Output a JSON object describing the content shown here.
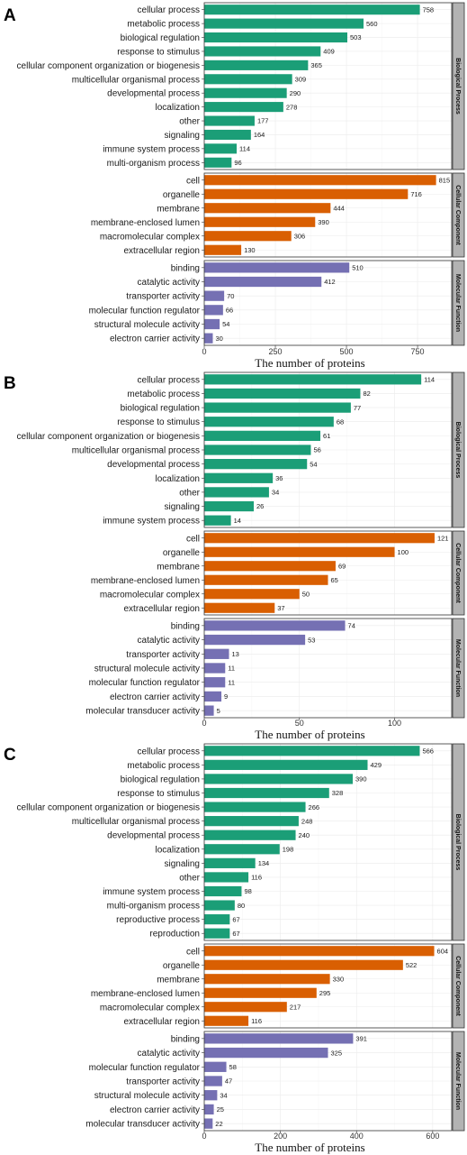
{
  "colors": {
    "biological": "#1b9e77",
    "cellular": "#d95f02",
    "molecular": "#7570b3",
    "strip_fill": "#b3b3b3",
    "grid": "#ebebeb"
  },
  "chart_data": [
    {
      "type": "bar",
      "panel_label": "A",
      "xlabel": "The number of proteins",
      "xlim": [
        0,
        870
      ],
      "xticks": [
        0,
        250,
        500,
        750
      ],
      "facets": [
        {
          "name": "Biological Process",
          "categories": [
            "cellular process",
            "metabolic process",
            "biological regulation",
            "response to stimulus",
            "cellular component organization or biogenesis",
            "multicellular organismal process",
            "developmental process",
            "localization",
            "other",
            "signaling",
            "immune system process",
            "multi-organism process"
          ],
          "values": [
            758,
            560,
            503,
            409,
            365,
            309,
            290,
            278,
            177,
            164,
            114,
            96
          ]
        },
        {
          "name": "Cellular Component",
          "categories": [
            "cell",
            "organelle",
            "membrane",
            "membrane-enclosed lumen",
            "macromolecular complex",
            "extracellular region"
          ],
          "values": [
            815,
            716,
            444,
            390,
            306,
            130
          ]
        },
        {
          "name": "Molecular Function",
          "categories": [
            "binding",
            "catalytic activity",
            "transporter activity",
            "molecular function regulator",
            "structural molecule activity",
            "electron carrier activity"
          ],
          "values": [
            510,
            412,
            70,
            66,
            54,
            30
          ]
        }
      ]
    },
    {
      "type": "bar",
      "panel_label": "B",
      "xlabel": "The number of proteins",
      "xlim": [
        0,
        130
      ],
      "xticks": [
        0,
        50,
        100
      ],
      "facets": [
        {
          "name": "Biological Process",
          "categories": [
            "cellular process",
            "metabolic process",
            "biological regulation",
            "response to stimulus",
            "cellular component organization or biogenesis",
            "multicellular organismal process",
            "developmental process",
            "localization",
            "other",
            "signaling",
            "immune system process"
          ],
          "values": [
            114,
            82,
            77,
            68,
            61,
            56,
            54,
            36,
            34,
            26,
            14
          ]
        },
        {
          "name": "Cellular Component",
          "categories": [
            "cell",
            "organelle",
            "membrane",
            "membrane-enclosed lumen",
            "macromolecular complex",
            "extracellular region"
          ],
          "values": [
            121,
            100,
            69,
            65,
            50,
            37
          ]
        },
        {
          "name": "Molecular Function",
          "categories": [
            "binding",
            "catalytic activity",
            "transporter activity",
            "structural molecule activity",
            "molecular function regulator",
            "electron carrier activity",
            "molecular transducer activity"
          ],
          "values": [
            74,
            53,
            13,
            11,
            11,
            9,
            5
          ]
        }
      ]
    },
    {
      "type": "bar",
      "panel_label": "C",
      "xlabel": "The number of proteins",
      "xlim": [
        0,
        650
      ],
      "xticks": [
        0,
        200,
        400,
        600
      ],
      "facets": [
        {
          "name": "Biological Process",
          "categories": [
            "cellular process",
            "metabolic process",
            "biological regulation",
            "response to stimulus",
            "cellular component organization or biogenesis",
            "multicellular organismal process",
            "developmental process",
            "localization",
            "signaling",
            "other",
            "immune system process",
            "multi-organism process",
            "reproductive process",
            "reproduction"
          ],
          "values": [
            566,
            429,
            390,
            328,
            266,
            248,
            240,
            198,
            134,
            116,
            98,
            80,
            67,
            67
          ]
        },
        {
          "name": "Cellular Component",
          "categories": [
            "cell",
            "organelle",
            "membrane",
            "membrane-enclosed lumen",
            "macromolecular complex",
            "extracellular region"
          ],
          "values": [
            604,
            522,
            330,
            295,
            217,
            116
          ]
        },
        {
          "name": "Molecular Function",
          "categories": [
            "binding",
            "catalytic activity",
            "molecular function regulator",
            "transporter activity",
            "structural molecule activity",
            "electron carrier activity",
            "molecular transducer activity"
          ],
          "values": [
            391,
            325,
            58,
            47,
            34,
            25,
            22
          ]
        }
      ]
    }
  ]
}
